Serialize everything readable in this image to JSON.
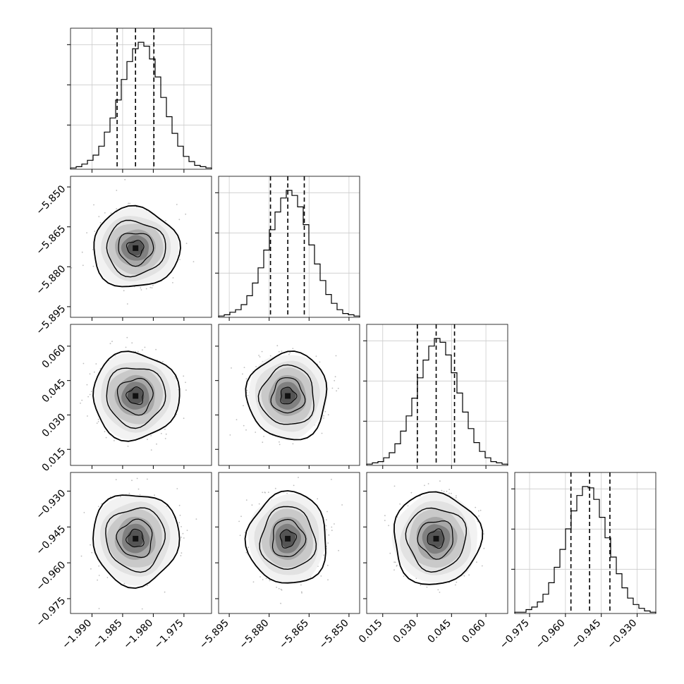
{
  "chart_data": {
    "type": "corner",
    "parameters": 4,
    "quantiles": [
      0.16,
      0.5,
      0.84
    ],
    "params": [
      {
        "range": [
          -1.9935,
          -1.9705
        ],
        "ticks": [
          "−1.990",
          "−1.985",
          "−1.980",
          "−1.975"
        ],
        "tick_values": [
          -1.99,
          -1.985,
          -1.98,
          -1.975
        ],
        "q16": -1.9859,
        "q50": -1.9829,
        "q84": -1.9799,
        "sigma": 0.003
      },
      {
        "range": [
          -5.899,
          -5.846
        ],
        "ticks": [
          "−5.895",
          "−5.880",
          "−5.865",
          "−5.850"
        ],
        "tick_values": [
          -5.895,
          -5.88,
          -5.865,
          -5.85
        ],
        "q16": -5.8795,
        "q50": -5.873,
        "q84": -5.8668,
        "sigma": 0.0064
      },
      {
        "range": [
          0.008,
          0.0695
        ],
        "ticks": [
          "0.015",
          "0.030",
          "0.045",
          "0.060"
        ],
        "tick_values": [
          0.015,
          0.03,
          0.045,
          0.06
        ],
        "q16": 0.0301,
        "q50": 0.0383,
        "q84": 0.0463,
        "sigma": 0.0081
      },
      {
        "range": [
          -0.9812,
          -0.9222
        ],
        "ticks": [
          "−0.975",
          "−0.960",
          "−0.945",
          "−0.930"
        ],
        "tick_values": [
          -0.975,
          -0.96,
          -0.945,
          -0.93
        ],
        "q16": -0.9577,
        "q50": -0.9499,
        "q84": -0.9414,
        "sigma": 0.0082
      }
    ],
    "histogram_counts": [
      [
        1,
        2,
        4,
        7,
        11,
        18,
        29,
        40,
        54,
        70,
        84,
        94,
        99,
        96,
        86,
        72,
        56,
        41,
        28,
        18,
        10,
        6,
        3,
        2,
        1
      ],
      [
        1,
        2,
        4,
        6,
        10,
        17,
        27,
        39,
        53,
        69,
        83,
        94,
        100,
        96,
        87,
        73,
        57,
        42,
        29,
        18,
        11,
        6,
        3,
        2,
        1
      ],
      [
        1,
        2,
        3,
        6,
        10,
        17,
        27,
        39,
        53,
        69,
        83,
        94,
        100,
        97,
        87,
        73,
        57,
        42,
        29,
        18,
        11,
        6,
        3,
        2,
        1
      ],
      [
        1,
        1,
        3,
        5,
        9,
        15,
        24,
        36,
        50,
        66,
        80,
        92,
        99,
        98,
        89,
        75,
        59,
        44,
        31,
        20,
        12,
        7,
        4,
        2,
        1
      ]
    ],
    "xlabel": "",
    "ylabel": "",
    "title": "",
    "grid": true,
    "colors": {
      "marks": "#000000",
      "points": "#bdbdbd",
      "grid": "#cccccc"
    }
  }
}
